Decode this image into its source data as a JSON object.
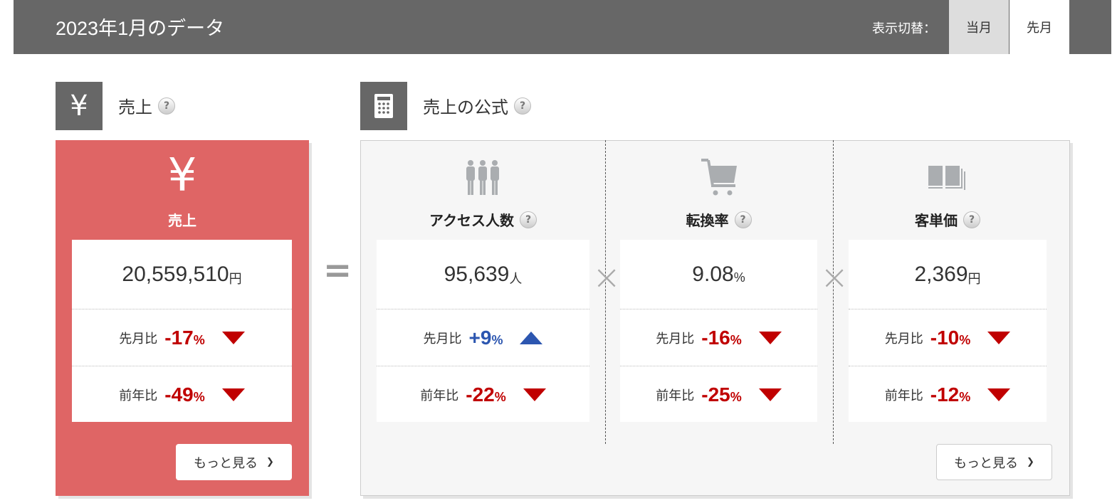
{
  "header": {
    "title": "2023年1月のデータ",
    "switch_label": "表示切替：",
    "options": [
      {
        "label": "当月",
        "selected": false
      },
      {
        "label": "先月",
        "selected": true
      }
    ]
  },
  "sales_section": {
    "title": "売上",
    "help": "?",
    "card": {
      "label": "売上",
      "value": "20,559,510",
      "unit": "円",
      "rows": [
        {
          "label": "先月比",
          "value": "-17",
          "unit": "%",
          "direction": "down"
        },
        {
          "label": "前年比",
          "value": "-49",
          "unit": "%",
          "direction": "down"
        }
      ],
      "more": "もっと見る",
      "more_chevron": "❯"
    }
  },
  "equals": "=",
  "formula_section": {
    "title": "売上の公式",
    "help": "?",
    "times": "×",
    "more": "もっと見る",
    "more_chevron": "❯",
    "metrics": [
      {
        "icon": "people-icon",
        "label": "アクセス人数",
        "value": "95,639",
        "unit": "人",
        "rows": [
          {
            "label": "先月比",
            "value": "+9",
            "unit": "%",
            "direction": "up"
          },
          {
            "label": "前年比",
            "value": "-22",
            "unit": "%",
            "direction": "down"
          }
        ]
      },
      {
        "icon": "cart-icon",
        "label": "転換率",
        "value": "9.08",
        "unit": "%",
        "rows": [
          {
            "label": "先月比",
            "value": "-16",
            "unit": "%",
            "direction": "down"
          },
          {
            "label": "前年比",
            "value": "-25",
            "unit": "%",
            "direction": "down"
          }
        ]
      },
      {
        "icon": "books-icon",
        "label": "客単価",
        "value": "2,369",
        "unit": "円",
        "rows": [
          {
            "label": "先月比",
            "value": "-10",
            "unit": "%",
            "direction": "down"
          },
          {
            "label": "前年比",
            "value": "-12",
            "unit": "%",
            "direction": "down"
          }
        ]
      }
    ]
  },
  "colors": {
    "header": "#676767",
    "sales_card": "#df6565",
    "down": "#c00000",
    "up": "#2c56b0"
  }
}
